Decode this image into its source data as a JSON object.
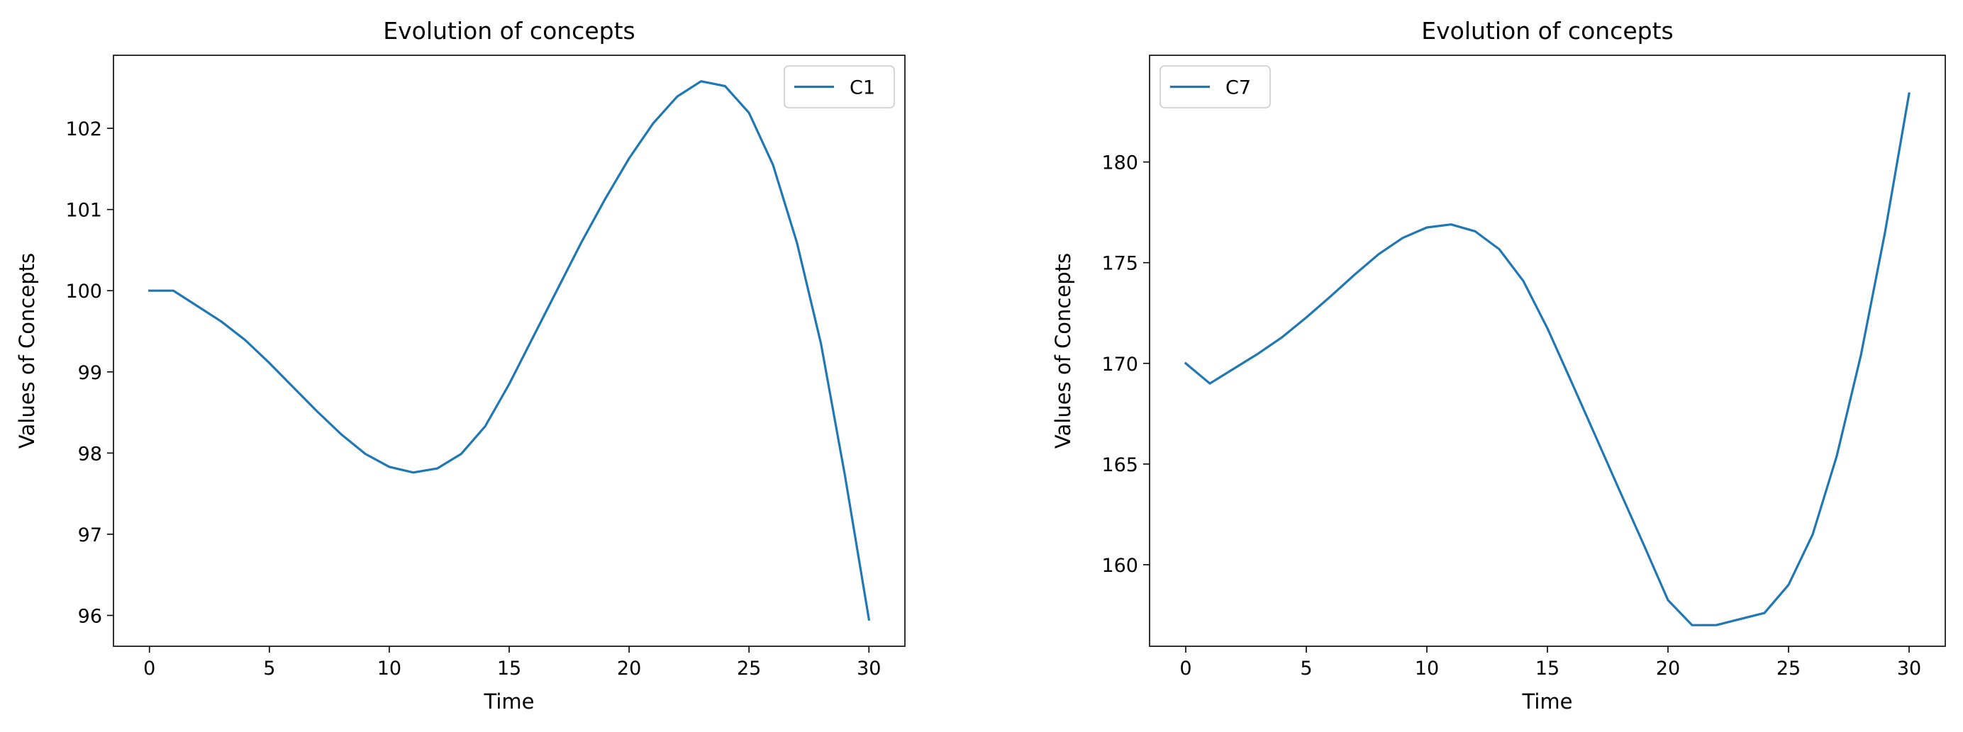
{
  "chart_data": [
    {
      "type": "line",
      "title": "Evolution of concepts",
      "xlabel": "Time",
      "ylabel": "Values of Concepts",
      "xlim": [
        -1.5,
        31.5
      ],
      "ylim": [
        95.62,
        102.9
      ],
      "xticks": [
        0,
        5,
        10,
        15,
        20,
        25,
        30
      ],
      "yticks": [
        96,
        97,
        98,
        99,
        100,
        101,
        102
      ],
      "legend": "top-right",
      "grid": false,
      "series": [
        {
          "name": "C1",
          "color": "#1f77b4",
          "x": [
            0,
            1,
            2,
            3,
            4,
            5,
            6,
            7,
            8,
            9,
            10,
            11,
            12,
            13,
            14,
            15,
            16,
            17,
            18,
            19,
            20,
            21,
            22,
            23,
            24,
            25,
            26,
            27,
            28,
            29,
            30
          ],
          "y": [
            100.0,
            100.0,
            99.81,
            99.62,
            99.39,
            99.11,
            98.81,
            98.51,
            98.23,
            97.99,
            97.83,
            97.76,
            97.81,
            97.99,
            98.33,
            98.85,
            99.43,
            100.01,
            100.59,
            101.13,
            101.63,
            102.06,
            102.39,
            102.58,
            102.52,
            102.19,
            101.55,
            100.59,
            99.35,
            97.72,
            95.95
          ]
        }
      ]
    },
    {
      "type": "line",
      "title": "Evolution of concepts",
      "xlabel": "Time",
      "ylabel": "Values of Concepts",
      "xlim": [
        -1.5,
        31.5
      ],
      "ylim": [
        155.95,
        185.3
      ],
      "xticks": [
        0,
        5,
        10,
        15,
        20,
        25,
        30
      ],
      "yticks": [
        160,
        165,
        170,
        175,
        180
      ],
      "legend": "top-left",
      "grid": false,
      "series": [
        {
          "name": "C7",
          "color": "#1f77b4",
          "x": [
            0,
            1,
            2,
            3,
            4,
            5,
            6,
            7,
            8,
            9,
            10,
            11,
            12,
            13,
            14,
            15,
            16,
            17,
            18,
            19,
            20,
            21,
            22,
            23,
            24,
            25,
            26,
            27,
            28,
            29,
            30
          ],
          "y": [
            170.0,
            169.0,
            169.74,
            170.48,
            171.3,
            172.28,
            173.32,
            174.4,
            175.42,
            176.23,
            176.75,
            176.9,
            176.56,
            175.67,
            174.09,
            171.74,
            169.07,
            166.37,
            163.66,
            160.98,
            158.24,
            157.0,
            157.0,
            157.3,
            157.6,
            159.0,
            161.5,
            165.4,
            170.4,
            176.5,
            183.4
          ]
        }
      ]
    }
  ]
}
